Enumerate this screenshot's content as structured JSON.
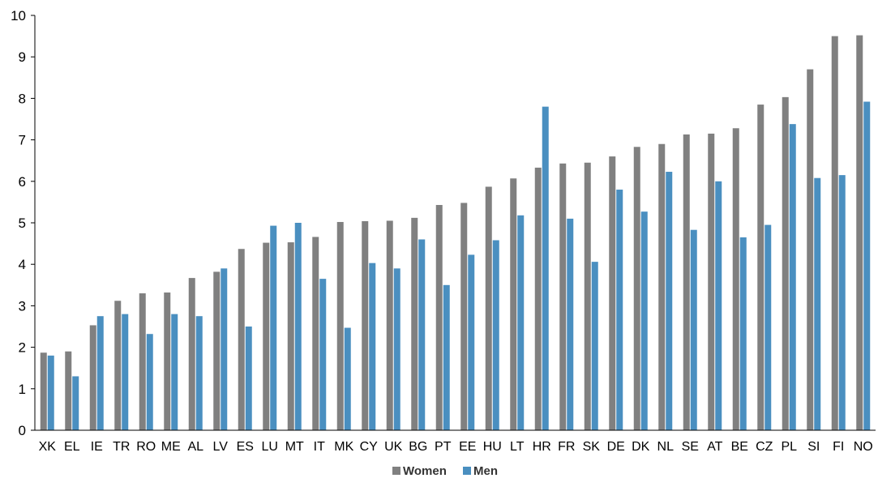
{
  "chart_data": {
    "type": "bar",
    "categories": [
      "XK",
      "EL",
      "IE",
      "TR",
      "RO",
      "ME",
      "AL",
      "LV",
      "ES",
      "LU",
      "MT",
      "IT",
      "MK",
      "CY",
      "UK",
      "BG",
      "PT",
      "EE",
      "HU",
      "LT",
      "HR",
      "FR",
      "SK",
      "DE",
      "DK",
      "NL",
      "SE",
      "AT",
      "BE",
      "CZ",
      "PL",
      "SI",
      "FI",
      "NO"
    ],
    "series": [
      {
        "name": "Women",
        "color": "#808080",
        "values": [
          1.87,
          1.9,
          2.53,
          3.12,
          3.3,
          3.32,
          3.67,
          3.82,
          4.37,
          4.52,
          4.53,
          4.66,
          5.02,
          5.04,
          5.05,
          5.12,
          5.43,
          5.48,
          5.87,
          6.07,
          6.33,
          6.43,
          6.45,
          6.6,
          6.83,
          6.9,
          7.13,
          7.15,
          7.28,
          7.85,
          8.03,
          8.7,
          9.5,
          9.52
        ]
      },
      {
        "name": "Men",
        "color": "#4a8fc0",
        "values": [
          1.8,
          1.3,
          2.75,
          2.8,
          2.32,
          2.8,
          2.75,
          3.9,
          2.5,
          4.93,
          5.0,
          3.65,
          2.47,
          4.03,
          3.9,
          4.6,
          3.5,
          4.23,
          4.58,
          5.18,
          7.8,
          5.1,
          4.06,
          5.8,
          5.27,
          6.23,
          4.83,
          6.0,
          4.65,
          4.95,
          7.38,
          6.08,
          6.15,
          7.92
        ]
      }
    ],
    "ylim": [
      0,
      10
    ],
    "yticks": [
      "0",
      "1",
      "2",
      "3",
      "4",
      "5",
      "6",
      "7",
      "8",
      "9",
      "10"
    ],
    "title": "",
    "xlabel": "",
    "ylabel": "",
    "grid": false,
    "legend_position": "bottom-center"
  }
}
